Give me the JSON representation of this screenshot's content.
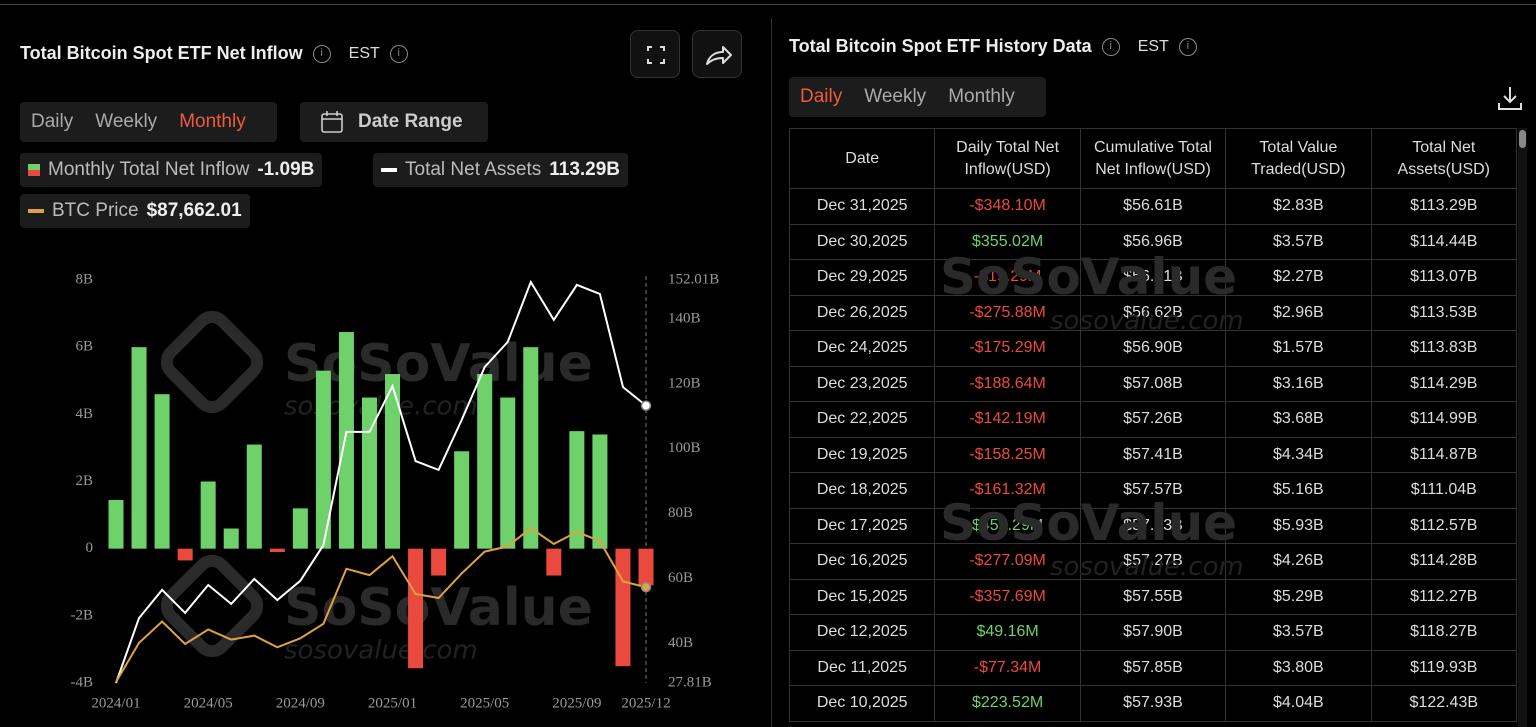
{
  "left": {
    "title": "Total Bitcoin Spot ETF Net Inflow",
    "timezone": "EST",
    "tabs": [
      "Daily",
      "Weekly",
      "Monthly"
    ],
    "active_tab": 2,
    "date_range": "Date Range"
  },
  "chart_data": {
    "type": "bar",
    "watermark": "SoSoValue",
    "watermark_url": "sosovalue.com",
    "categories": [
      "2024/01",
      null,
      null,
      null,
      "2024/05",
      null,
      null,
      null,
      "2024/09",
      null,
      null,
      null,
      "2025/01",
      null,
      null,
      null,
      "2025/05",
      null,
      null,
      null,
      "2025/09",
      null,
      null,
      "2025/12"
    ],
    "series": [
      {
        "name": "Monthly Total Net Inflow",
        "legend_value": "-1.09B",
        "color": "#6fd16a",
        "negative_color": "#ea4a3e",
        "values": [
          1.45,
          6.0,
          4.6,
          -0.35,
          2.0,
          0.6,
          3.1,
          -0.1,
          1.2,
          5.3,
          6.45,
          4.5,
          5.2,
          -3.56,
          -0.8,
          2.9,
          5.2,
          4.5,
          6.0,
          -0.8,
          3.5,
          3.4,
          -3.5,
          -1.09
        ]
      },
      {
        "name": "Total Net Assets",
        "legend_value": "113.29B",
        "type": "line",
        "axis": "y2",
        "color": "#ffffff",
        "values": [
          27.81,
          47.8,
          56.5,
          49.4,
          58.0,
          52.2,
          59.9,
          53.4,
          59.3,
          70.3,
          105.2,
          105.2,
          119.3,
          96.2,
          93.5,
          108.9,
          125.2,
          132.9,
          151.4,
          139.7,
          150.5,
          147.7,
          119.0,
          113.29
        ]
      },
      {
        "name": "BTC Price",
        "legend_value": "$87,662.01",
        "type": "line",
        "axis": "y3",
        "color": "#e0a145",
        "values": [
          42500,
          61100,
          71300,
          60600,
          67500,
          62700,
          64600,
          59000,
          63300,
          70200,
          96400,
          93400,
          102400,
          84400,
          82500,
          94200,
          104600,
          107100,
          115800,
          108200,
          114000,
          109600,
          90400,
          87662.01
        ]
      }
    ],
    "ylim": [
      -4,
      8
    ],
    "yticks": [
      {
        "value": 8,
        "label": "8B"
      },
      {
        "value": 6,
        "label": "6B"
      },
      {
        "value": 4,
        "label": "4B"
      },
      {
        "value": 2,
        "label": "2B"
      },
      0,
      {
        "value": -2,
        "label": "-2B"
      },
      {
        "value": -4,
        "label": "-4B"
      }
    ],
    "y2lim": [
      27.81,
      152.01
    ],
    "y2ticks": [
      {
        "value": 152.01,
        "label": "152.01B"
      },
      {
        "value": 140,
        "label": "140B"
      },
      {
        "value": 120,
        "label": "120B"
      },
      {
        "value": 100,
        "label": "100B"
      },
      {
        "value": 80,
        "label": "80B"
      },
      {
        "value": 60,
        "label": "60B"
      },
      {
        "value": 40,
        "label": "40B"
      },
      {
        "value": 27.81,
        "label": "27.81B"
      }
    ],
    "y3lim": [
      42000,
      234000
    ],
    "grid": false
  },
  "history": {
    "title": "Total Bitcoin Spot ETF History Data",
    "timezone": "EST",
    "tabs": [
      "Daily",
      "Weekly",
      "Monthly"
    ],
    "active_tab": 0,
    "columns": [
      "Date",
      "Daily Total Net Inflow(USD)",
      "Cumulative Total Net Inflow(USD)",
      "Total Value Traded(USD)",
      "Total Net Assets(USD)"
    ],
    "rows": [
      [
        "Dec 31,2025",
        "-$348.10M",
        "$56.61B",
        "$2.83B",
        "$113.29B"
      ],
      [
        "Dec 30,2025",
        "$355.02M",
        "$56.96B",
        "$3.57B",
        "$114.44B"
      ],
      [
        "Dec 29,2025",
        "-$19.29M",
        "$56.61B",
        "$2.27B",
        "$113.07B"
      ],
      [
        "Dec 26,2025",
        "-$275.88M",
        "$56.62B",
        "$2.96B",
        "$113.53B"
      ],
      [
        "Dec 24,2025",
        "-$175.29M",
        "$56.90B",
        "$1.57B",
        "$113.83B"
      ],
      [
        "Dec 23,2025",
        "-$188.64M",
        "$57.08B",
        "$3.16B",
        "$114.29B"
      ],
      [
        "Dec 22,2025",
        "-$142.19M",
        "$57.26B",
        "$3.68B",
        "$114.99B"
      ],
      [
        "Dec 19,2025",
        "-$158.25M",
        "$57.41B",
        "$4.34B",
        "$114.87B"
      ],
      [
        "Dec 18,2025",
        "-$161.32M",
        "$57.57B",
        "$5.16B",
        "$111.04B"
      ],
      [
        "Dec 17,2025",
        "$457.29M",
        "$57.73B",
        "$5.93B",
        "$112.57B"
      ],
      [
        "Dec 16,2025",
        "-$277.09M",
        "$57.27B",
        "$4.26B",
        "$114.28B"
      ],
      [
        "Dec 15,2025",
        "-$357.69M",
        "$57.55B",
        "$5.29B",
        "$112.27B"
      ],
      [
        "Dec 12,2025",
        "$49.16M",
        "$57.90B",
        "$3.57B",
        "$118.27B"
      ],
      [
        "Dec 11,2025",
        "-$77.34M",
        "$57.85B",
        "$3.80B",
        "$119.93B"
      ],
      [
        "Dec 10,2025",
        "$223.52M",
        "$57.93B",
        "$4.04B",
        "$122.43B"
      ]
    ]
  }
}
